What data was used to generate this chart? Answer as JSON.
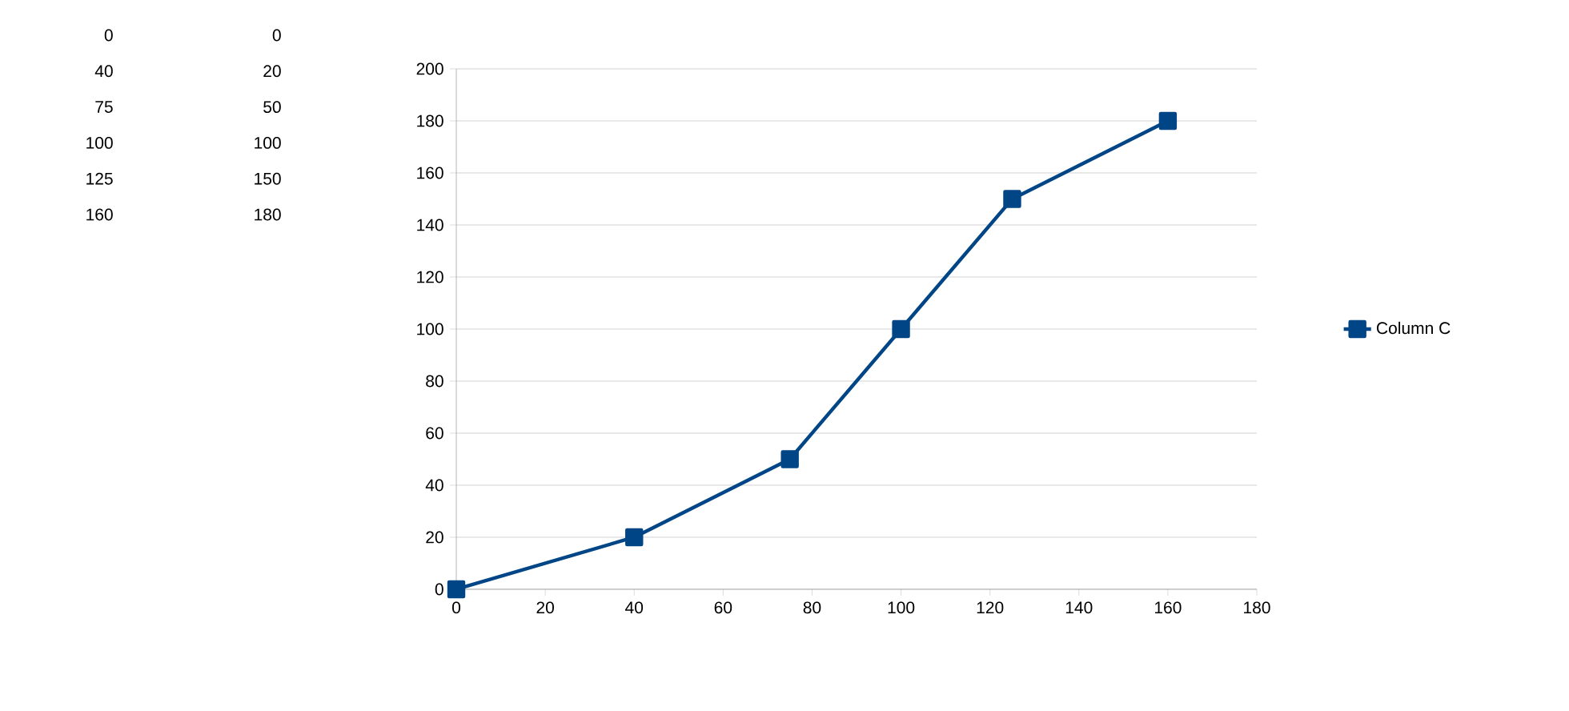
{
  "chart_data": {
    "type": "line",
    "x": [
      0,
      40,
      75,
      100,
      125,
      160
    ],
    "series": [
      {
        "name": "Column C",
        "color": "#004586",
        "values": [
          0,
          20,
          50,
          100,
          150,
          180
        ]
      }
    ],
    "xlim": [
      0,
      180
    ],
    "xticks": [
      0,
      20,
      40,
      60,
      80,
      100,
      120,
      140,
      160,
      180
    ],
    "ylim": [
      0,
      200
    ],
    "yticks": [
      0,
      20,
      40,
      60,
      80,
      100,
      120,
      140,
      160,
      180,
      200
    ],
    "grid": "y",
    "legend": "right",
    "marker": "square",
    "line_style": "solid",
    "annotations": [
      "0",
      "0",
      "40",
      "20",
      "75",
      "50",
      "100",
      "100",
      "125",
      "150",
      "160",
      "180"
    ]
  }
}
